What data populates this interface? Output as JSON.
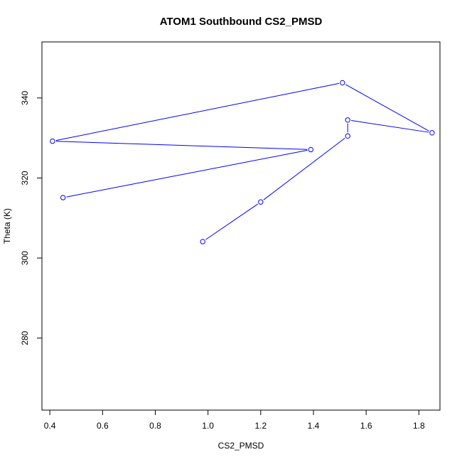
{
  "chart_data": {
    "type": "line",
    "title": "ATOM1 Southbound CS2_PMSD",
    "xlabel": "CS2_PMSD",
    "ylabel": "Theta (K)",
    "xlim": [
      0.37,
      1.88
    ],
    "ylim": [
      262,
      354
    ],
    "xticks": [
      0.4,
      0.6,
      0.8,
      1.0,
      1.2,
      1.4,
      1.6,
      1.8
    ],
    "xtick_labels": [
      "0.4",
      "0.6",
      "0.8",
      "1.0",
      "1.2",
      "1.4",
      "1.6",
      "1.8"
    ],
    "yticks": [
      280,
      300,
      320,
      340
    ],
    "ytick_labels": [
      "280",
      "300",
      "320",
      "340"
    ],
    "grid": false,
    "series": [
      {
        "color": "#0000ff",
        "marker": "open-circle",
        "x": [
          0.98,
          1.2,
          1.53,
          1.53,
          1.85,
          1.51,
          0.41,
          1.39,
          0.45
        ],
        "y": [
          304.1,
          314.0,
          330.5,
          334.5,
          331.3,
          343.8,
          329.2,
          327.1,
          315.1
        ]
      }
    ]
  }
}
